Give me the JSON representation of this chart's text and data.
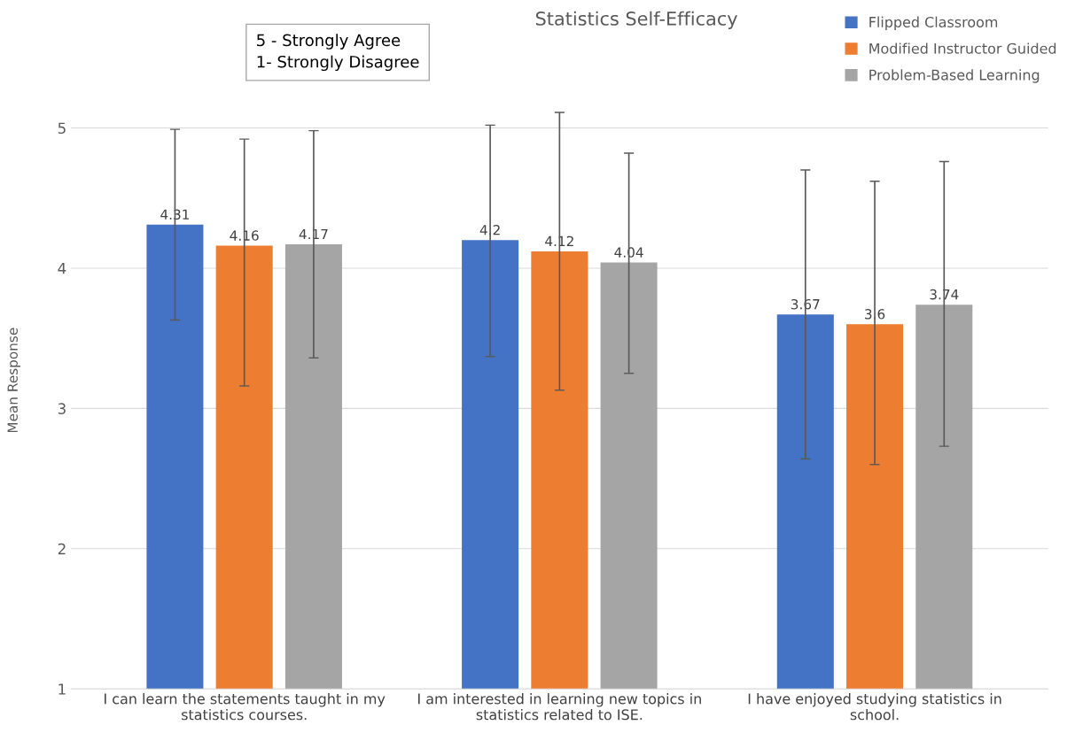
{
  "chart_data": {
    "type": "bar",
    "title": "Statistics Self-Efficacy",
    "ylabel": "Mean Response",
    "categories": [
      "I can learn the statements taught in my\nstatistics courses.",
      "I am interested in learning new topics in\nstatistics related to ISE.",
      "I have enjoyed studying statistics in\nschool."
    ],
    "series": [
      {
        "name": "Flipped Classroom",
        "color": "#4472c4",
        "values": [
          4.31,
          4.2,
          3.67
        ],
        "errors": [
          [
            3.63,
            4.99
          ],
          [
            3.37,
            5.02
          ],
          [
            2.64,
            4.7
          ]
        ]
      },
      {
        "name": "Modified Instructor Guided",
        "color": "#ed7d31",
        "values": [
          4.16,
          4.12,
          3.6
        ],
        "errors": [
          [
            3.16,
            4.92
          ],
          [
            3.13,
            5.11
          ],
          [
            2.6,
            4.62
          ]
        ]
      },
      {
        "name": "Problem-Based Learning",
        "color": "#a5a5a5",
        "values": [
          4.17,
          4.04,
          3.74
        ],
        "errors": [
          [
            3.36,
            4.98
          ],
          [
            3.25,
            4.82
          ],
          [
            2.73,
            4.76
          ]
        ]
      }
    ],
    "ylim": [
      1,
      5.4
    ],
    "yticks": [
      1,
      2,
      3,
      4,
      5
    ],
    "grid": "y",
    "legend": "top right",
    "data_labels": true,
    "annotations": [
      "5 - Strongly Agree\n1- Strongly Disagree"
    ]
  }
}
